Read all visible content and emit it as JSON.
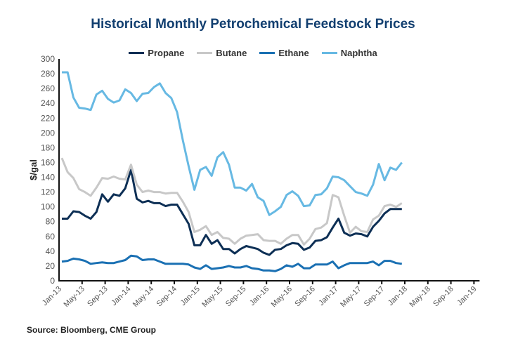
{
  "chart_data": {
    "type": "line",
    "title": "Historical Monthly Petrochemical Feedstock Prices",
    "xlabel": "",
    "ylabel": "$/gal",
    "ylim": [
      0,
      300
    ],
    "yticks": [
      0,
      20,
      40,
      60,
      80,
      100,
      120,
      140,
      160,
      180,
      200,
      220,
      240,
      260,
      280,
      300
    ],
    "xtick_labels": [
      "Jan-13",
      "May-13",
      "Sep-13",
      "Jan-14",
      "May-14",
      "Sep-14",
      "Jan-15",
      "May-15",
      "Sep-15",
      "Jan-16",
      "May-16",
      "Sep-16",
      "Jan-17",
      "May-17",
      "Sep-17",
      "Jan-18",
      "May-18",
      "Sep-18",
      "Jan-19"
    ],
    "x_start": "Jan-13",
    "x_end": "Jan-19",
    "x_unit": "monthly",
    "legend_position": "top-center",
    "grid": false,
    "series": [
      {
        "name": "Propane",
        "color": "#0d2f55",
        "values": [
          84,
          84,
          94,
          93,
          88,
          84,
          93,
          117,
          107,
          117,
          115,
          125,
          150,
          111,
          106,
          108,
          105,
          105,
          101,
          103,
          103,
          90,
          77,
          48,
          48,
          62,
          50,
          55,
          43,
          43,
          37,
          43,
          47,
          45,
          43,
          38,
          35,
          42,
          43,
          48,
          51,
          50,
          42,
          45,
          54,
          55,
          59,
          72,
          84,
          65,
          61,
          64,
          63,
          60,
          73,
          81,
          91,
          97,
          97,
          97
        ]
      },
      {
        "name": "Butane",
        "color": "#c8c8c8",
        "values": [
          166,
          147,
          139,
          124,
          120,
          115,
          126,
          139,
          138,
          141,
          138,
          137,
          157,
          130,
          120,
          122,
          120,
          120,
          118,
          119,
          119,
          107,
          93,
          66,
          69,
          74,
          62,
          66,
          58,
          57,
          50,
          57,
          61,
          62,
          63,
          55,
          54,
          54,
          50,
          57,
          62,
          62,
          49,
          57,
          70,
          72,
          78,
          116,
          113,
          88,
          65,
          73,
          67,
          66,
          83,
          88,
          101,
          103,
          100,
          105
        ]
      },
      {
        "name": "Ethane",
        "color": "#1a70b3",
        "values": [
          26,
          27,
          30,
          29,
          27,
          23,
          24,
          25,
          24,
          24,
          26,
          28,
          34,
          33,
          28,
          29,
          29,
          26,
          23,
          23,
          23,
          23,
          22,
          18,
          16,
          21,
          16,
          17,
          18,
          20,
          18,
          18,
          20,
          17,
          16,
          14,
          14,
          13,
          16,
          21,
          19,
          23,
          17,
          17,
          22,
          22,
          22,
          26,
          17,
          21,
          24,
          24,
          24,
          24,
          26,
          21,
          27,
          27,
          24,
          23
        ]
      },
      {
        "name": "Naphtha",
        "color": "#67b9e3",
        "values": [
          282,
          282,
          248,
          234,
          233,
          231,
          252,
          257,
          246,
          241,
          244,
          259,
          254,
          243,
          253,
          254,
          262,
          267,
          254,
          247,
          228,
          190,
          155,
          123,
          150,
          154,
          142,
          167,
          174,
          157,
          126,
          126,
          122,
          131,
          113,
          108,
          89,
          94,
          100,
          116,
          121,
          115,
          101,
          102,
          116,
          117,
          125,
          141,
          140,
          136,
          128,
          120,
          118,
          115,
          130,
          158,
          136,
          153,
          150,
          160
        ]
      }
    ]
  },
  "source": "Source: Bloomberg, CME Group"
}
